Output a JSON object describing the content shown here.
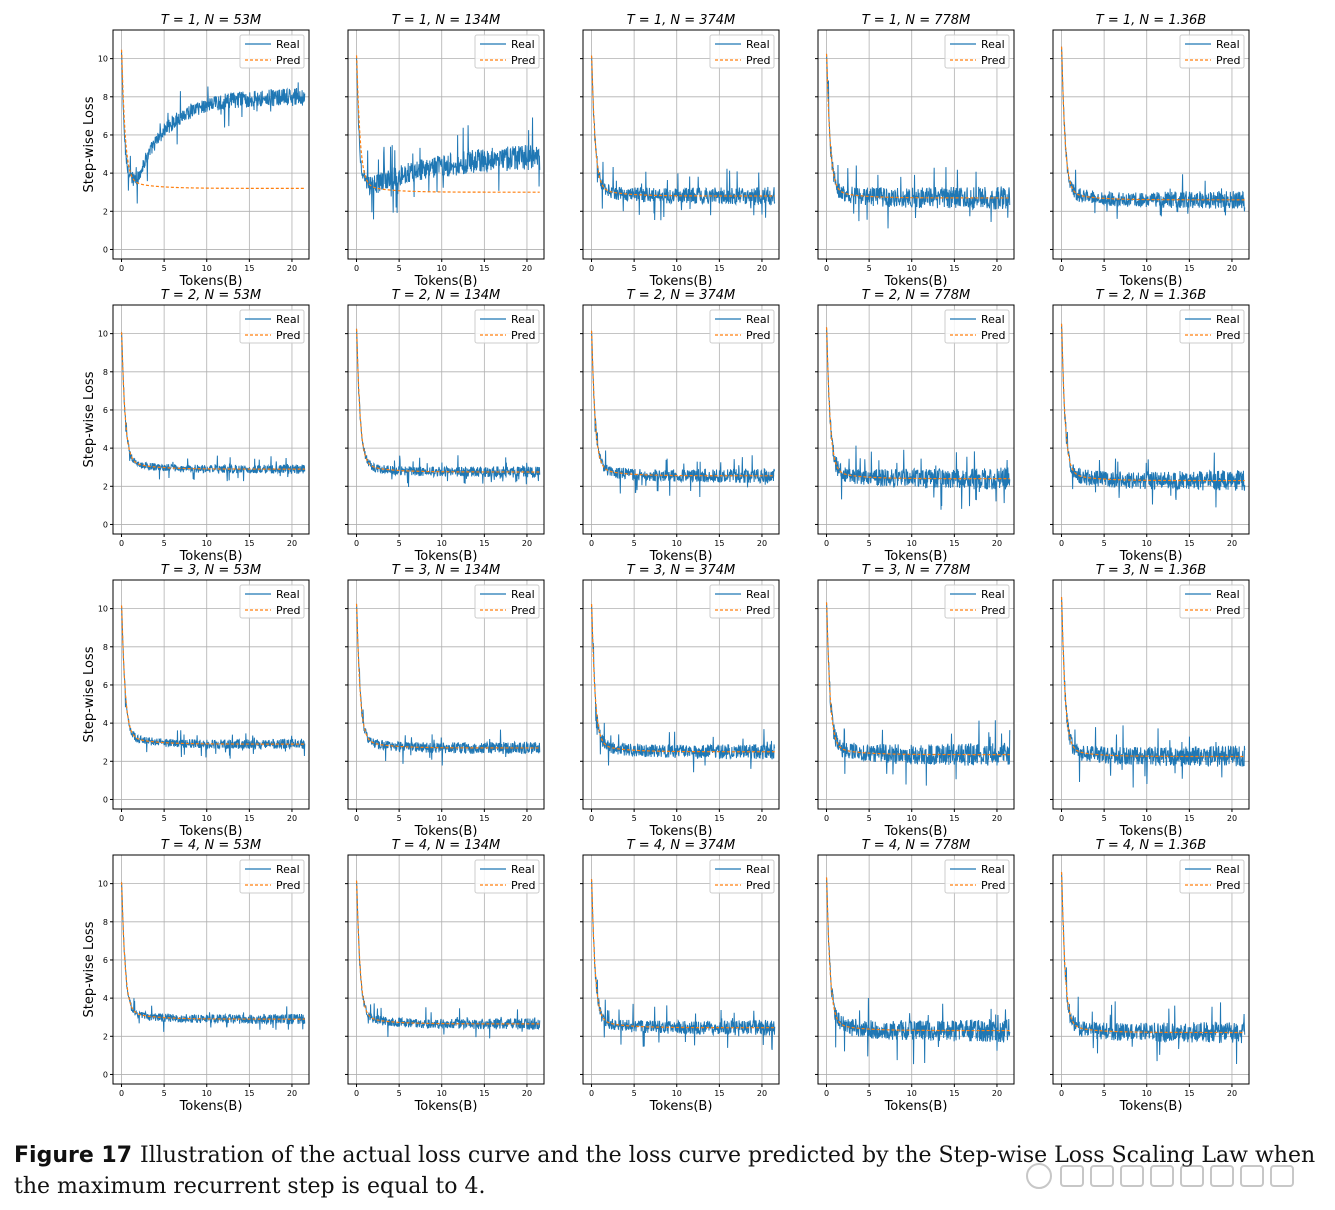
{
  "chart_data": {
    "type": "line",
    "layout_desc": "grid of 4 rows x 5 columns of line charts",
    "xlabel": "Tokens(B)",
    "ylabel": "Step-wise Loss",
    "xlim": [
      -1,
      22
    ],
    "ylim": [
      -0.5,
      11.5
    ],
    "xticks": [
      0,
      5,
      10,
      15,
      20
    ],
    "yticks": [
      0,
      2,
      4,
      6,
      8,
      10
    ],
    "grid": true,
    "legend": {
      "entries": [
        "Real",
        "Pred"
      ],
      "placement": "top-right"
    },
    "series_colors": {
      "Real": "#1f77b4",
      "Pred": "#ff7f0e"
    },
    "series_styles": {
      "Real": "solid",
      "Pred": "dashed"
    },
    "x_end": 21.5,
    "panels": [
      {
        "row": 1,
        "col": 1,
        "title": "T = 1, N = 53M",
        "start_loss": 10.8,
        "pred_plateau": 3.2,
        "real_plateau": 8.0,
        "real_dip": 3.6,
        "noise": 0.35
      },
      {
        "row": 1,
        "col": 2,
        "title": "T = 1, N = 134M",
        "start_loss": 10.5,
        "pred_plateau": 3.0,
        "real_plateau": 5.0,
        "real_dip": 3.3,
        "noise": 0.5
      },
      {
        "row": 1,
        "col": 3,
        "title": "T = 1, N = 374M",
        "start_loss": 10.5,
        "pred_plateau": 2.8,
        "real_plateau": 2.85,
        "noise": 0.35
      },
      {
        "row": 1,
        "col": 4,
        "title": "T = 1, N = 778M",
        "start_loss": 10.6,
        "pred_plateau": 2.7,
        "real_plateau": 2.75,
        "noise": 0.45
      },
      {
        "row": 1,
        "col": 5,
        "title": "T = 1, N = 1.36B",
        "start_loss": 11.0,
        "pred_plateau": 2.6,
        "real_plateau": 2.6,
        "noise": 0.35
      },
      {
        "row": 2,
        "col": 1,
        "title": "T = 2, N = 53M",
        "start_loss": 10.4,
        "pred_plateau": 2.9,
        "real_plateau": 3.0,
        "noise": 0.18
      },
      {
        "row": 2,
        "col": 2,
        "title": "T = 2, N = 134M",
        "start_loss": 10.6,
        "pred_plateau": 2.75,
        "real_plateau": 2.75,
        "noise": 0.22
      },
      {
        "row": 2,
        "col": 3,
        "title": "T = 2, N = 374M",
        "start_loss": 10.5,
        "pred_plateau": 2.55,
        "real_plateau": 2.55,
        "noise": 0.28
      },
      {
        "row": 2,
        "col": 4,
        "title": "T = 2, N = 778M",
        "start_loss": 10.7,
        "pred_plateau": 2.4,
        "real_plateau": 2.45,
        "noise": 0.42
      },
      {
        "row": 2,
        "col": 5,
        "title": "T = 2, N = 1.36B",
        "start_loss": 10.9,
        "pred_plateau": 2.3,
        "real_plateau": 2.3,
        "noise": 0.4
      },
      {
        "row": 3,
        "col": 1,
        "title": "T = 3, N = 53M",
        "start_loss": 10.5,
        "pred_plateau": 2.9,
        "real_plateau": 3.0,
        "noise": 0.2
      },
      {
        "row": 3,
        "col": 2,
        "title": "T = 3, N = 134M",
        "start_loss": 10.6,
        "pred_plateau": 2.7,
        "real_plateau": 2.7,
        "noise": 0.24
      },
      {
        "row": 3,
        "col": 3,
        "title": "T = 3, N = 374M",
        "start_loss": 10.6,
        "pred_plateau": 2.5,
        "real_plateau": 2.5,
        "noise": 0.3
      },
      {
        "row": 3,
        "col": 4,
        "title": "T = 3, N = 778M",
        "start_loss": 10.7,
        "pred_plateau": 2.35,
        "real_plateau": 2.4,
        "noise": 0.45
      },
      {
        "row": 3,
        "col": 5,
        "title": "T = 3, N = 1.36B",
        "start_loss": 11.0,
        "pred_plateau": 2.25,
        "real_plateau": 2.25,
        "noise": 0.42
      },
      {
        "row": 4,
        "col": 1,
        "title": "T = 4, N = 53M",
        "start_loss": 10.4,
        "pred_plateau": 2.9,
        "real_plateau": 2.95,
        "noise": 0.2
      },
      {
        "row": 4,
        "col": 2,
        "title": "T = 4, N = 134M",
        "start_loss": 10.5,
        "pred_plateau": 2.65,
        "real_plateau": 2.65,
        "noise": 0.22
      },
      {
        "row": 4,
        "col": 3,
        "title": "T = 4, N = 374M",
        "start_loss": 10.6,
        "pred_plateau": 2.45,
        "real_plateau": 2.5,
        "noise": 0.3
      },
      {
        "row": 4,
        "col": 4,
        "title": "T = 4, N = 778M",
        "start_loss": 10.7,
        "pred_plateau": 2.3,
        "real_plateau": 2.35,
        "noise": 0.45
      },
      {
        "row": 4,
        "col": 5,
        "title": "T = 4, N = 1.36B",
        "start_loss": 11.0,
        "pred_plateau": 2.2,
        "real_plateau": 2.2,
        "noise": 0.42
      }
    ]
  },
  "caption": {
    "label": "Figure 17",
    "text": "Illustration of the actual loss curve and the loss curve predicted by the Step-wise Loss Scaling Law when the maximum recurrent step is equal to 4."
  }
}
